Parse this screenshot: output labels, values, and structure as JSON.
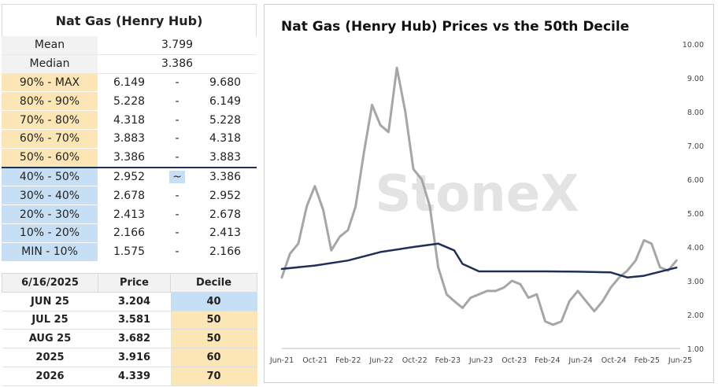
{
  "table_title": "Nat Gas (Henry Hub)",
  "stats": [
    {
      "label": "Mean",
      "value": "3.799"
    },
    {
      "label": "Median",
      "value": "3.386"
    }
  ],
  "deciles": [
    {
      "label": "90% - MAX",
      "low": "6.149",
      "sep": "-",
      "high": "9.680",
      "color": "orange"
    },
    {
      "label": "80% - 90%",
      "low": "5.228",
      "sep": "-",
      "high": "6.149",
      "color": "orange"
    },
    {
      "label": "70% - 80%",
      "low": "4.318",
      "sep": "-",
      "high": "5.228",
      "color": "orange"
    },
    {
      "label": "60% - 70%",
      "low": "3.883",
      "sep": "-",
      "high": "4.318",
      "color": "orange"
    },
    {
      "label": "50% - 60%",
      "low": "3.386",
      "sep": "-",
      "high": "3.883",
      "color": "orange"
    },
    {
      "label": "40% - 50%",
      "low": "2.952",
      "sep": "~",
      "high": "3.386",
      "color": "blue"
    },
    {
      "label": "30% - 40%",
      "low": "2.678",
      "sep": "-",
      "high": "2.952",
      "color": "blue"
    },
    {
      "label": "20% - 30%",
      "low": "2.413",
      "sep": "-",
      "high": "2.678",
      "color": "blue"
    },
    {
      "label": "10% - 20%",
      "low": "2.166",
      "sep": "-",
      "high": "2.413",
      "color": "blue"
    },
    {
      "label": "MIN - 10%",
      "low": "1.575",
      "sep": "-",
      "high": "2.166",
      "color": "blue"
    }
  ],
  "contracts": {
    "headers": [
      "6/16/2025",
      "Price",
      "Decile"
    ],
    "rows": [
      {
        "contract": "JUN 25",
        "price": "3.204",
        "decile": "40",
        "color": "blue"
      },
      {
        "contract": "JUL 25",
        "price": "3.581",
        "decile": "50",
        "color": "orange"
      },
      {
        "contract": "AUG 25",
        "price": "3.682",
        "decile": "50",
        "color": "orange"
      },
      {
        "contract": "2025",
        "price": "3.916",
        "decile": "60",
        "color": "orange"
      },
      {
        "contract": "2026",
        "price": "4.339",
        "decile": "70",
        "color": "orange"
      }
    ]
  },
  "colors": {
    "orange": "#fde6b5",
    "blue": "#c7dff5",
    "price_line": "#a6a6a6",
    "median_line": "#1f2f55"
  },
  "watermark": "StoneX",
  "chart_data": {
    "type": "line",
    "title": "Nat Gas (Henry Hub) Prices vs the 50th Decile",
    "xlabel": "",
    "ylabel": "",
    "x_ticks": [
      "Jun-21",
      "Oct-21",
      "Feb-22",
      "Jun-22",
      "Oct-22",
      "Feb-23",
      "Jun-23",
      "Oct-23",
      "Feb-24",
      "Jun-24",
      "Oct-24",
      "Feb-25",
      "Jun-25"
    ],
    "y_ticks": [
      "1.00",
      "2.00",
      "3.00",
      "4.00",
      "5.00",
      "6.00",
      "7.00",
      "8.00",
      "9.00",
      "10.00"
    ],
    "ylim": [
      1,
      10
    ],
    "y_axis_position": "right",
    "legend": "none",
    "series": [
      {
        "role": "price",
        "x": [
          "2021-06",
          "2021-07",
          "2021-08",
          "2021-09",
          "2021-10",
          "2021-11",
          "2021-12",
          "2022-01",
          "2022-02",
          "2022-03",
          "2022-04",
          "2022-05",
          "2022-06",
          "2022-07",
          "2022-08",
          "2022-09",
          "2022-10",
          "2022-11",
          "2022-12",
          "2023-01",
          "2023-02",
          "2023-03",
          "2023-04",
          "2023-05",
          "2023-06",
          "2023-07",
          "2023-08",
          "2023-09",
          "2023-10",
          "2023-11",
          "2023-12",
          "2024-01",
          "2024-02",
          "2024-03",
          "2024-04",
          "2024-05",
          "2024-06",
          "2024-07",
          "2024-08",
          "2024-09",
          "2024-10",
          "2024-11",
          "2024-12",
          "2025-01",
          "2025-02",
          "2025-03",
          "2025-04",
          "2025-05",
          "2025-06"
        ],
        "values": [
          3.1,
          3.8,
          4.1,
          5.2,
          5.8,
          5.1,
          3.9,
          4.3,
          4.5,
          5.2,
          6.8,
          8.2,
          7.6,
          7.4,
          9.3,
          8.0,
          6.3,
          6.0,
          5.2,
          3.4,
          2.6,
          2.4,
          2.2,
          2.5,
          2.6,
          2.7,
          2.7,
          2.8,
          3.0,
          2.9,
          2.5,
          2.6,
          1.8,
          1.7,
          1.8,
          2.4,
          2.7,
          2.4,
          2.1,
          2.4,
          2.8,
          3.1,
          3.3,
          3.6,
          4.2,
          4.1,
          3.4,
          3.3,
          3.6
        ]
      },
      {
        "role": "50th decile",
        "x": [
          "2021-06",
          "2021-10",
          "2022-02",
          "2022-06",
          "2022-10",
          "2023-01",
          "2023-03",
          "2023-04",
          "2023-06",
          "2023-10",
          "2024-02",
          "2024-06",
          "2024-10",
          "2024-12",
          "2025-02",
          "2025-06"
        ],
        "values": [
          3.35,
          3.45,
          3.6,
          3.85,
          4.0,
          4.1,
          3.9,
          3.5,
          3.28,
          3.28,
          3.28,
          3.27,
          3.25,
          3.1,
          3.15,
          3.39
        ]
      }
    ]
  }
}
